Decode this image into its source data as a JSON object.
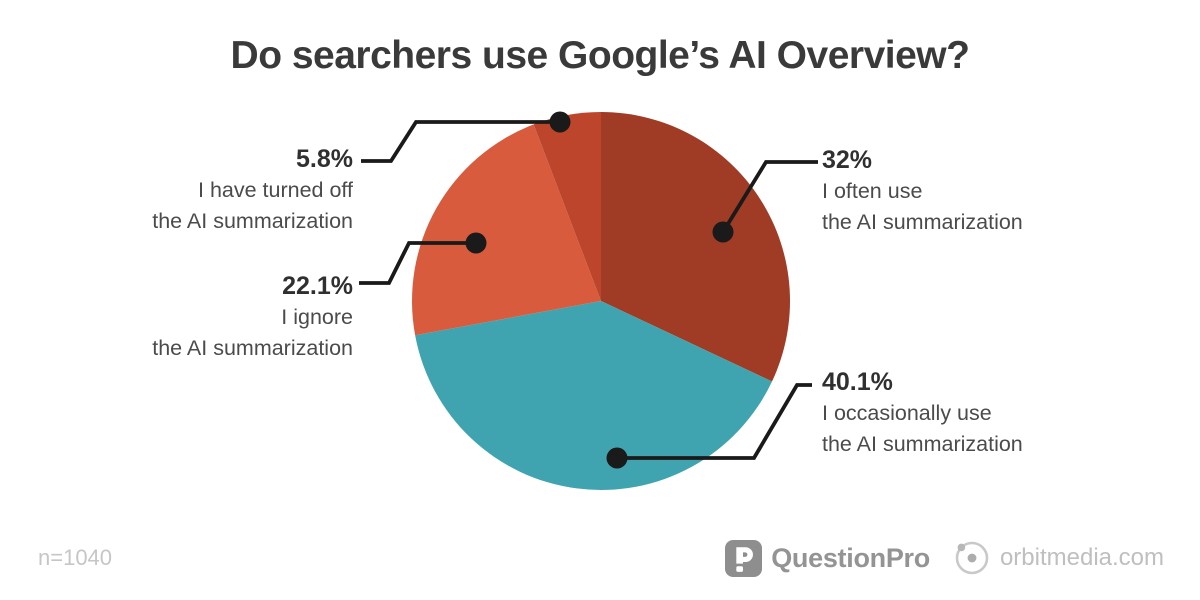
{
  "title": "Do searchers use Google’s AI Overview?",
  "footnote": "n=1040",
  "footer": {
    "questionpro_label": "QuestionPro",
    "orbitmedia_label": "orbitmedia.com"
  },
  "colors": {
    "callout_line": "#1a1a1a",
    "often": "#A03B25",
    "occasionally": "#3FA4B0",
    "ignore": "#D95B3E",
    "turned_off": "#BC452C"
  },
  "chart_data": {
    "type": "pie",
    "title": "Do searchers use Google’s AI Overview?",
    "sample_size_label": "n=1040",
    "start_angle_deg": 0,
    "direction": "clockwise",
    "legend_position": "callout-labels",
    "slices": [
      {
        "label": "I often use the AI summarization",
        "value": 32,
        "pct_label": "32%",
        "desc_line1": "I often use",
        "desc_line2": "the AI summarization",
        "color": "#A03B25"
      },
      {
        "label": "I occasionally use the AI summarization",
        "value": 40.1,
        "pct_label": "40.1%",
        "desc_line1": "I occasionally use",
        "desc_line2": "the AI summarization",
        "color": "#3FA4B0"
      },
      {
        "label": "I ignore the AI summarization",
        "value": 22.1,
        "pct_label": "22.1%",
        "desc_line1": "I ignore",
        "desc_line2": "the AI summarization",
        "color": "#D95B3E"
      },
      {
        "label": "I have turned off the AI summarization",
        "value": 5.8,
        "pct_label": "5.8%",
        "desc_line1": "I have turned off",
        "desc_line2": "the AI summarization",
        "color": "#BC452C"
      }
    ]
  }
}
